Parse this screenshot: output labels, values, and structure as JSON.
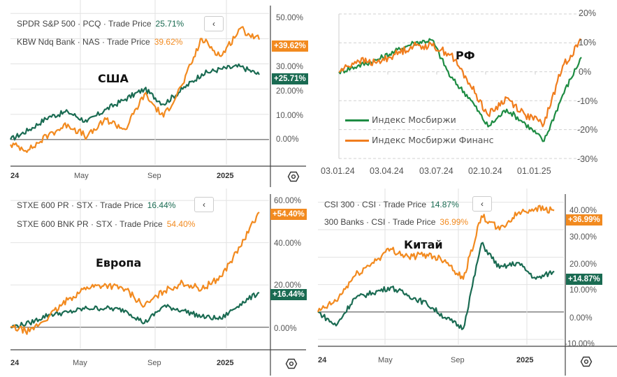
{
  "colors": {
    "green": "#1a6b52",
    "orange": "#f28a1f",
    "rf_green": "#1e8c43",
    "rf_orange": "#f07d1e"
  },
  "chart_data": [
    {
      "type": "line",
      "title": "США",
      "legend": [
        {
          "name": "SPDR S&P 500 · PCQ · Trade Price",
          "value": "25.71%",
          "color": "green"
        },
        {
          "name": "KBW Ndq Bank · NAS · Trade Price",
          "value": "39.62%",
          "color": "orange"
        }
      ],
      "badges": [
        "+39.62%",
        "+25.71%"
      ],
      "xticks": [
        "24",
        "May",
        "Sep",
        "2025"
      ],
      "yticks": [
        "50.00%",
        "30.00%",
        "20.00%",
        "10.00%",
        "0.00%"
      ],
      "ylim": [
        -10,
        52
      ],
      "x": [
        "2024-01",
        "2024-02",
        "2024-03",
        "2024-04",
        "2024-05",
        "2024-06",
        "2024-07",
        "2024-08",
        "2024-09",
        "2024-10",
        "2024-11",
        "2024-12",
        "2025-01",
        "2025-02"
      ],
      "series": [
        {
          "name": "SPDR S&P 500",
          "color": "green",
          "values": [
            0,
            4,
            9,
            11,
            7,
            12,
            16,
            20,
            14,
            20,
            26,
            28,
            29,
            25.71
          ]
        },
        {
          "name": "KBW Ndq Bank",
          "color": "orange",
          "values": [
            -2,
            -4,
            2,
            6,
            1,
            8,
            4,
            18,
            9,
            22,
            40,
            33,
            44,
            39.62
          ]
        }
      ]
    },
    {
      "type": "line",
      "title": "РФ",
      "legend": [
        {
          "name": "Индекс Мосбиржи",
          "color": "rf_green"
        },
        {
          "name": "Индекс Мосбиржи Финанс",
          "color": "rf_orange"
        }
      ],
      "xticks": [
        "03.01.24",
        "03.04.24",
        "03.07.24",
        "02.10.24",
        "01.01.25"
      ],
      "yticks": [
        "20%",
        "10%",
        "0%",
        "-10%",
        "-20%",
        "-30%"
      ],
      "ylim": [
        -30,
        20
      ],
      "x": [
        "2024-01",
        "2024-02",
        "2024-03",
        "2024-04",
        "2024-05",
        "2024-06",
        "2024-07",
        "2024-08",
        "2024-09",
        "2024-10",
        "2024-11",
        "2024-12",
        "2025-01",
        "2025-02"
      ],
      "series": [
        {
          "name": "Индекс Мосбиржи",
          "color": "rf_green",
          "values": [
            0,
            2,
            4,
            7,
            10,
            11,
            -2,
            -9,
            -19,
            -13,
            -18,
            -24,
            -8,
            5
          ]
        },
        {
          "name": "Индекс Мосбиржи Финанс",
          "color": "rf_orange",
          "values": [
            0,
            4,
            3,
            6,
            9,
            9,
            6,
            -4,
            -15,
            -9,
            -15,
            -18,
            2,
            11
          ]
        }
      ]
    },
    {
      "type": "line",
      "title": "Европа",
      "legend": [
        {
          "name": "STXE 600 PR · STX · Trade Price",
          "value": "16.44%",
          "color": "green"
        },
        {
          "name": "STXE 600 BNK PR · STX · Trade Price",
          "value": "54.40%",
          "color": "orange"
        }
      ],
      "badges": [
        "+54.40%",
        "+16.44%"
      ],
      "xticks": [
        "24",
        "May",
        "Sep",
        "2025"
      ],
      "yticks": [
        "60.00%",
        "40.00%",
        "20.00%",
        "0.00%"
      ],
      "ylim": [
        -10,
        63
      ],
      "x": [
        "2024-01",
        "2024-02",
        "2024-03",
        "2024-04",
        "2024-05",
        "2024-06",
        "2024-07",
        "2024-08",
        "2024-09",
        "2024-10",
        "2024-11",
        "2024-12",
        "2025-01",
        "2025-02"
      ],
      "series": [
        {
          "name": "STXE 600 PR",
          "color": "green",
          "values": [
            0,
            2,
            6,
            7,
            9,
            9,
            8,
            2,
            10,
            8,
            5,
            4,
            11,
            16.44
          ]
        },
        {
          "name": "STXE 600 BNK PR",
          "color": "orange",
          "values": [
            0,
            -2,
            5,
            13,
            19,
            20,
            18,
            10,
            17,
            21,
            18,
            24,
            38,
            54.4
          ]
        }
      ]
    },
    {
      "type": "line",
      "title": "Китай",
      "legend": [
        {
          "name": "CSI 300 · CSI · Trade Price",
          "value": "14.87%",
          "color": "green"
        },
        {
          "name": "300 Banks · CSI · Trade Price",
          "value": "36.99%",
          "color": "orange"
        }
      ],
      "badges": [
        "+36.99%",
        "+14.87%"
      ],
      "xticks": [
        "24",
        "May",
        "Sep",
        "2025"
      ],
      "yticks": [
        "40.00%",
        "30.00%",
        "20.00%",
        "10.00%",
        "0.00%",
        "-10.00%"
      ],
      "ylim": [
        -12,
        43
      ],
      "x": [
        "2024-01",
        "2024-02",
        "2024-03",
        "2024-04",
        "2024-05",
        "2024-06",
        "2024-07",
        "2024-08",
        "2024-09",
        "2024-10",
        "2024-11",
        "2024-12",
        "2025-01",
        "2025-02"
      ],
      "series": [
        {
          "name": "CSI 300",
          "color": "green",
          "values": [
            0,
            -5,
            5,
            7,
            9,
            6,
            3,
            -2,
            -6,
            25,
            16,
            18,
            12,
            14.87
          ]
        },
        {
          "name": "300 Banks",
          "color": "orange",
          "values": [
            0,
            4,
            13,
            18,
            23,
            20,
            21,
            19,
            12,
            35,
            30,
            36,
            38,
            36.99
          ]
        }
      ]
    }
  ]
}
